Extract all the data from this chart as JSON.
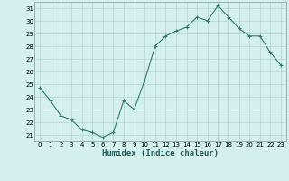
{
  "x": [
    0,
    1,
    2,
    3,
    4,
    5,
    6,
    7,
    8,
    9,
    10,
    11,
    12,
    13,
    14,
    15,
    16,
    17,
    18,
    19,
    20,
    21,
    22,
    23
  ],
  "y": [
    24.7,
    23.7,
    22.5,
    22.2,
    21.4,
    21.2,
    20.8,
    21.2,
    23.7,
    23.0,
    25.3,
    28.0,
    28.8,
    29.2,
    29.5,
    30.3,
    30.0,
    31.2,
    30.3,
    29.4,
    28.8,
    28.8,
    27.5,
    26.5
  ],
  "line_color": "#2e7d6e",
  "marker": "+",
  "marker_size": 3,
  "marker_linewidth": 0.8,
  "bg_color": "#d4f0ec",
  "grid_color_minor": "#c8ddd9",
  "grid_color_major": "#b0ccc8",
  "xlabel": "Humidex (Indice chaleur)",
  "xlim": [
    -0.5,
    23.5
  ],
  "ylim": [
    20.5,
    31.5
  ],
  "yticks": [
    21,
    22,
    23,
    24,
    25,
    26,
    27,
    28,
    29,
    30,
    31
  ],
  "xticks": [
    0,
    1,
    2,
    3,
    4,
    5,
    6,
    7,
    8,
    9,
    10,
    11,
    12,
    13,
    14,
    15,
    16,
    17,
    18,
    19,
    20,
    21,
    22,
    23
  ],
  "tick_fontsize": 5.0,
  "xlabel_fontsize": 6.5,
  "linewidth": 0.8
}
